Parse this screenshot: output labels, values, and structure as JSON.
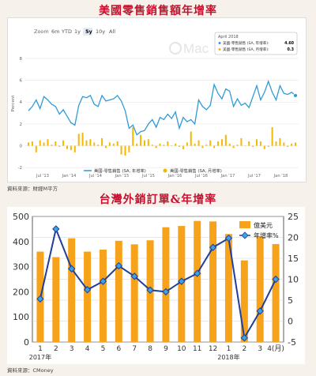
{
  "chart1": {
    "title": "美國零售銷售額年增率",
    "source": "資料來源：財經M平方",
    "zoom": {
      "label": "Zoom",
      "buttons": [
        "6m",
        "YTD",
        "1y",
        "5y",
        "10y",
        "All"
      ],
      "active": "5y"
    },
    "ylabel": "Percent",
    "watermark": "Mac",
    "tooltip": {
      "date": "April 2018",
      "rows": [
        {
          "label": "美國-零售銷售 (SA, 年增率):",
          "value": "4.60"
        },
        {
          "label": "美國-零售銷售 (SA, 月增率):",
          "value": "0.3"
        }
      ]
    },
    "legend": [
      "美國-零售銷售 (SA, 年增率)",
      "美國-零售銷售 (SA, 月增率)"
    ],
    "colors": {
      "line": "#2f9bd6",
      "bar": "#f5b800"
    }
  },
  "chart2": {
    "title": "台灣外銷訂單&年增率",
    "source": "資料來源：CMoney",
    "legend": [
      "億美元",
      "年增率%"
    ],
    "colors": {
      "bar": "#f7a21b",
      "line": "#1f3f9b",
      "marker": "#3aa3e0"
    }
  },
  "chart_data": [
    {
      "type": "line",
      "series": [
        {
          "name": "美國-零售銷售 (SA, 年增率)",
          "type": "line"
        },
        {
          "name": "美國-零售銷售 (SA, 月增率)",
          "type": "bar"
        }
      ],
      "x_ticks": [
        "Jul '13",
        "Jan '14",
        "Jul '14",
        "Jan '15",
        "Jul '15",
        "Jan '16",
        "Jul '16",
        "Jan '17",
        "Jul '17",
        "Jan '18"
      ],
      "y_ticks": [
        -2,
        0,
        2,
        4,
        6,
        8
      ],
      "ylim": [
        -2.2,
        8.5
      ],
      "ylabel": "Percent",
      "yoy": [
        3.2,
        3.6,
        4.2,
        3.4,
        4.5,
        4.2,
        3.8,
        3.6,
        2.9,
        3.3,
        2.7,
        2.1,
        1.9,
        3.7,
        4.5,
        4.4,
        4.6,
        3.8,
        3.6,
        4.6,
        4.1,
        4.2,
        4.3,
        4.6,
        4.1,
        3.2,
        1.6,
        1.9,
        1.0,
        1.3,
        1.4,
        2.0,
        2.4,
        1.7,
        2.6,
        2.4,
        2.9,
        2.5,
        3.1,
        1.6,
        2.6,
        2.2,
        2.4,
        2.0,
        4.2,
        3.6,
        3.3,
        3.7,
        5.6,
        4.8,
        4.3,
        5.2,
        5.0,
        3.6,
        4.3,
        3.7,
        3.9,
        3.5,
        4.5,
        5.5,
        4.2,
        4.9,
        5.9,
        4.9,
        4.2,
        5.5,
        4.8,
        4.7,
        4.9,
        4.6
      ],
      "mom": [
        0.3,
        0.4,
        -0.6,
        0.5,
        0.3,
        0.6,
        0.1,
        0.4,
        -0.1,
        0.5,
        -0.3,
        -0.4,
        -0.6,
        1.1,
        1.2,
        0.5,
        0.6,
        0.3,
        0.1,
        0.7,
        -0.2,
        0.3,
        0.2,
        0.4,
        -0.8,
        -0.9,
        -0.6,
        1.7,
        0.2,
        1.0,
        0.5,
        0.6,
        0.1,
        -0.2,
        0.2,
        0.1,
        0.4,
        0.0,
        0.2,
        -0.1,
        -0.3,
        0.3,
        1.3,
        0.2,
        0.5,
        -0.2,
        0.1,
        0.5,
        -0.2,
        0.4,
        0.6,
        1.0,
        0.2,
        -0.2,
        0.1,
        0.7,
        0.0,
        0.4,
        -0.1,
        0.6,
        0.4,
        -0.3,
        -0.1,
        1.7,
        0.4,
        0.7,
        0.3,
        -0.1,
        0.2,
        0.3
      ]
    },
    {
      "type": "bar",
      "categories": [
        "2017年1",
        "2",
        "3",
        "4",
        "5",
        "6",
        "7",
        "8",
        "9",
        "10",
        "11",
        "12",
        "2018年1",
        "2",
        "3",
        "4(月)"
      ],
      "x_tick_labels": [
        "1",
        "2",
        "3",
        "4",
        "5",
        "6",
        "7",
        "8",
        "9",
        "10",
        "11",
        "12",
        "1",
        "2",
        "3",
        "4(月)"
      ],
      "year_labels": [
        "2017年",
        "2018年"
      ],
      "series": [
        {
          "name": "億美元",
          "axis": "left",
          "values": [
            360,
            338,
            413,
            360,
            368,
            403,
            389,
            405,
            457,
            462,
            482,
            480,
            430,
            325,
            420,
            390
          ]
        },
        {
          "name": "年增率%",
          "axis": "right",
          "values": [
            5.3,
            22.0,
            12.5,
            7.5,
            9.5,
            13.2,
            10.7,
            7.4,
            7.0,
            9.5,
            11.4,
            17.6,
            19.8,
            -4.0,
            2.4,
            10.0
          ]
        }
      ],
      "left_ylim": [
        0,
        500
      ],
      "left_ticks": [
        0,
        100,
        200,
        300,
        400,
        500
      ],
      "right_ylim": [
        -5,
        25
      ],
      "right_ticks": [
        -5,
        0,
        5,
        10,
        15,
        20,
        25
      ]
    }
  ]
}
